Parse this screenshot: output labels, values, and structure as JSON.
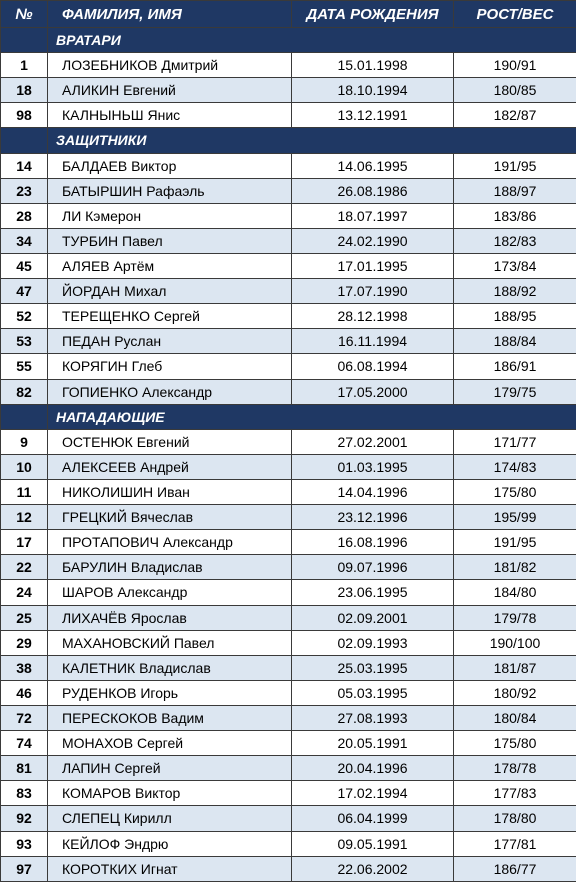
{
  "header": [
    "№",
    "ФАМИЛИЯ, ИМЯ",
    "ДАТА РОЖДЕНИЯ",
    "РОСТ/ВЕС"
  ],
  "sections": [
    {
      "title": "ВРАТАРИ",
      "rows": [
        [
          "1",
          "ЛОЗЕБНИКОВ Дмитрий",
          "15.01.1998",
          "190/91"
        ],
        [
          "18",
          "АЛИКИН Евгений",
          "18.10.1994",
          "180/85"
        ],
        [
          "98",
          "КАЛНЫНЬШ Янис",
          "13.12.1991",
          "182/87"
        ]
      ]
    },
    {
      "title": "ЗАЩИТНИКИ",
      "rows": [
        [
          "14",
          "БАЛДАЕВ Виктор",
          "14.06.1995",
          "191/95"
        ],
        [
          "23",
          "БАТЫРШИН Рафаэль",
          "26.08.1986",
          "188/97"
        ],
        [
          "28",
          "ЛИ Кэмерон",
          "18.07.1997",
          "183/86"
        ],
        [
          "34",
          "ТУРБИН Павел",
          "24.02.1990",
          "182/83"
        ],
        [
          "45",
          "АЛЯЕВ Артём",
          "17.01.1995",
          "173/84"
        ],
        [
          "47",
          "ЙОРДАН Михал",
          "17.07.1990",
          "188/92"
        ],
        [
          "52",
          "ТЕРЕЩЕНКО Сергей",
          "28.12.1998",
          "188/95"
        ],
        [
          "53",
          "ПЕДАН Руслан",
          "16.11.1994",
          "188/84"
        ],
        [
          "55",
          "КОРЯГИН Глеб",
          "06.08.1994",
          "186/91"
        ],
        [
          "82",
          "ГОПИЕНКО Александр",
          "17.05.2000",
          "179/75"
        ]
      ]
    },
    {
      "title": "НАПАДАЮЩИЕ",
      "rows": [
        [
          "9",
          "ОСТЕНЮК Евгений",
          "27.02.2001",
          "171/77"
        ],
        [
          "10",
          "АЛЕКСЕЕВ Андрей",
          "01.03.1995",
          "174/83"
        ],
        [
          "11",
          "НИКОЛИШИН Иван",
          "14.04.1996",
          "175/80"
        ],
        [
          "12",
          "ГРЕЦКИЙ Вячеслав",
          "23.12.1996",
          "195/99"
        ],
        [
          "17",
          "ПРОТАПОВИЧ Александр",
          "16.08.1996",
          "191/95"
        ],
        [
          "22",
          "БАРУЛИН Владислав",
          "09.07.1996",
          "181/82"
        ],
        [
          "24",
          "ШАРОВ Александр",
          "23.06.1995",
          "184/80"
        ],
        [
          "25",
          "ЛИХАЧЁВ Ярослав",
          "02.09.2001",
          "179/78"
        ],
        [
          "29",
          "МАХАНОВСКИЙ Павел",
          "02.09.1993",
          "190/100"
        ],
        [
          "38",
          "КАЛЕТНИК Владислав",
          "25.03.1995",
          "181/87"
        ],
        [
          "46",
          "РУДЕНКОВ Игорь",
          "05.03.1995",
          "180/92"
        ],
        [
          "72",
          "ПЕРЕСКОКОВ Вадим",
          "27.08.1993",
          "180/84"
        ],
        [
          "74",
          "МОНАХОВ Сергей",
          "20.05.1991",
          "175/80"
        ],
        [
          "81",
          "ЛАПИН Сергей",
          "20.04.1996",
          "178/78"
        ],
        [
          "83",
          "КОМАРОВ Виктор",
          "17.02.1994",
          "177/83"
        ],
        [
          "92",
          "СЛЕПЕЦ Кирилл",
          "06.04.1999",
          "178/80"
        ],
        [
          "93",
          "КЕЙЛОФ Эндрю",
          "09.05.1991",
          "177/81"
        ],
        [
          "97",
          "КОРОТКИХ Игнат",
          "22.06.2002",
          "186/77"
        ]
      ]
    }
  ]
}
